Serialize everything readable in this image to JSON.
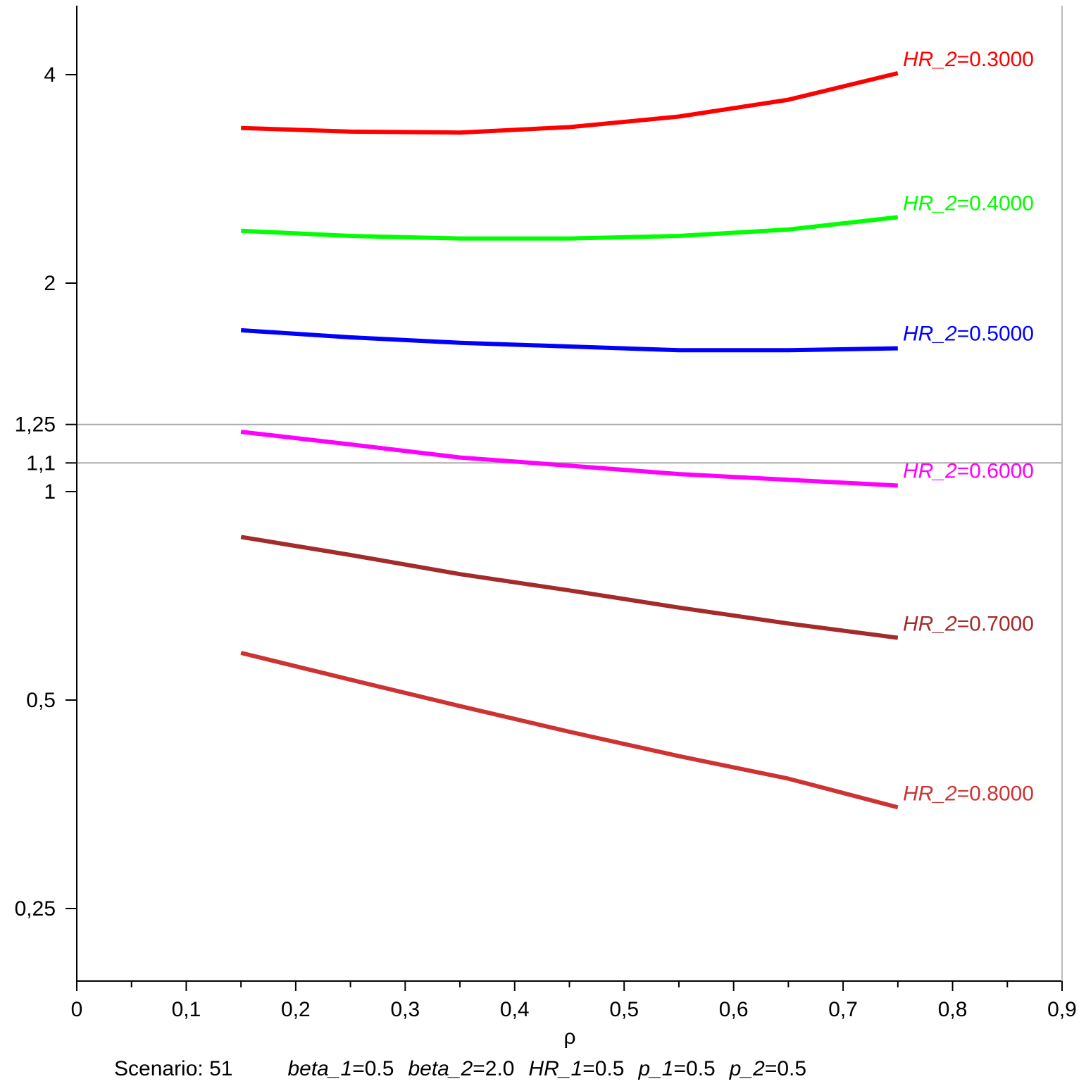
{
  "chart_data": {
    "type": "line",
    "xlabel": "ρ",
    "ylabel": "",
    "xlim": [
      0,
      0.9
    ],
    "ylim": [
      0.2,
      5
    ],
    "yscale": "log",
    "x_ticks": [
      {
        "value": 0,
        "label": "0"
      },
      {
        "value": 0.1,
        "label": "0,1"
      },
      {
        "value": 0.2,
        "label": "0,2"
      },
      {
        "value": 0.3,
        "label": "0,3"
      },
      {
        "value": 0.4,
        "label": "0,4"
      },
      {
        "value": 0.5,
        "label": "0,5"
      },
      {
        "value": 0.6,
        "label": "0,6"
      },
      {
        "value": 0.7,
        "label": "0,7"
      },
      {
        "value": 0.8,
        "label": "0,8"
      },
      {
        "value": 0.9,
        "label": "0,9"
      }
    ],
    "y_ticks": [
      {
        "value": 4,
        "label": "4"
      },
      {
        "value": 2,
        "label": "2"
      },
      {
        "value": 1.25,
        "label": "1,25"
      },
      {
        "value": 1.1,
        "label": "1,1"
      },
      {
        "value": 1,
        "label": "1"
      },
      {
        "value": 0.5,
        "label": "0,5"
      },
      {
        "value": 0.25,
        "label": "0,25"
      }
    ],
    "reference_lines": [
      1.25,
      1.1
    ],
    "x": [
      0.15,
      0.25,
      0.35,
      0.45,
      0.55,
      0.65,
      0.75
    ],
    "series": [
      {
        "label_name": "HR_2",
        "label_eq": "=",
        "label_value": "0.3000",
        "color": "#ff0000",
        "values": [
          3.35,
          3.31,
          3.3,
          3.36,
          3.48,
          3.68,
          4.02
        ]
      },
      {
        "label_name": "HR_2",
        "label_eq": "=",
        "label_value": "0.4000",
        "color": "#00ff00",
        "values": [
          2.38,
          2.34,
          2.32,
          2.32,
          2.34,
          2.39,
          2.49
        ]
      },
      {
        "label_name": "HR_2",
        "label_eq": "=",
        "label_value": "0.5000",
        "color": "#0000ff",
        "values": [
          1.71,
          1.67,
          1.64,
          1.62,
          1.6,
          1.6,
          1.61
        ]
      },
      {
        "label_name": "HR_2",
        "label_eq": "=",
        "label_value": "0.6000",
        "color": "#ff00ff",
        "values": [
          1.22,
          1.17,
          1.12,
          1.09,
          1.06,
          1.04,
          1.02
        ]
      },
      {
        "label_name": "HR_2",
        "label_eq": "=",
        "label_value": "0.7000",
        "color": "#a52a2a",
        "values": [
          0.86,
          0.81,
          0.76,
          0.72,
          0.68,
          0.645,
          0.615
        ]
      },
      {
        "label_name": "HR_2",
        "label_eq": "=",
        "label_value": "0.8000",
        "color": "#cd3333",
        "values": [
          0.585,
          0.535,
          0.49,
          0.45,
          0.415,
          0.385,
          0.35
        ]
      }
    ],
    "caption": {
      "scenario": "Scenario: 51",
      "params": [
        {
          "name": "beta_1",
          "eq": "=",
          "value": "0.5"
        },
        {
          "name": "beta_2",
          "eq": "=",
          "value": "2.0"
        },
        {
          "name": "HR_1",
          "eq": "=",
          "value": "0.5"
        },
        {
          "name": "p_1",
          "eq": "=",
          "value": "0.5"
        },
        {
          "name": "p_2",
          "eq": "=",
          "value": "0.5"
        }
      ]
    }
  }
}
